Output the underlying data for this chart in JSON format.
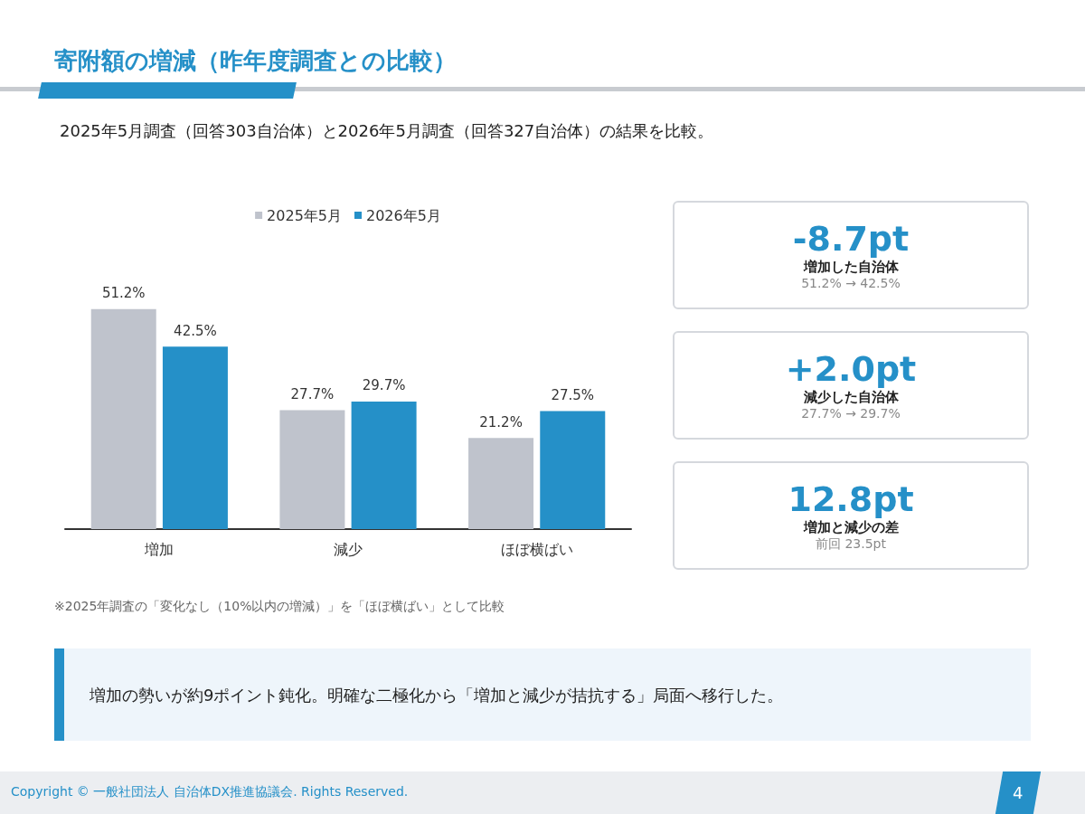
{
  "chart_data": [
    {
      "type": "bar",
      "title": "寄附額の増減（昨年度調査との比較）",
      "subtitle": "2025年5月調査（回答303自治体）と2026年5月調査（回答327自治体）の結果を比較。",
      "categories": [
        "増加",
        "減少",
        "ほぼ横ばい"
      ],
      "legend": "top",
      "series": [
        {
          "name": "2025年5月",
          "color": "#bfc3cc",
          "values": [
            51.2,
            27.7,
            21.2
          ],
          "value_labels": [
            "51.2%",
            "27.7%",
            "21.2%"
          ]
        },
        {
          "name": "2026年5月",
          "color": "#2590c8",
          "values": [
            42.5,
            29.7,
            27.5
          ],
          "value_labels": [
            "42.5%",
            "29.7%",
            "27.5%"
          ]
        }
      ],
      "annotations": [
        "※2025年調査の「変化なし（10%以内の増減）」を「ほぼ横ばい」として比較",
        "増加の勢いが約9ポイント鈍化。明確な二極化から「増加と減少が拮抗する」局面へ移行した。",
        "Copyright © 一般社団法人 自治体DX推進協議会. Rights Reserved.",
        "4"
      ]
    },
    {
      "type": "other",
      "title": "-8.7pt",
      "subtitle": "増加した自治体",
      "annotations": [
        "51.2% → 42.5%"
      ]
    },
    {
      "type": "other",
      "title": "+2.0pt",
      "subtitle": "減少した自治体",
      "annotations": [
        "27.7% → 29.7%"
      ]
    },
    {
      "type": "other",
      "title": "12.8pt",
      "subtitle": "増加と減少の差",
      "annotations": [
        "前回 23.5pt"
      ]
    }
  ]
}
